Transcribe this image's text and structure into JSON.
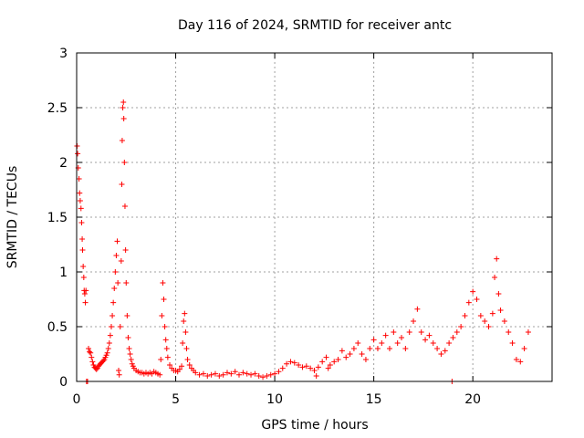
{
  "chart_data": {
    "type": "scatter",
    "title": "Day 116 of 2024, SRMTID for receiver antc",
    "xlabel": "GPS time / hours",
    "ylabel": "SRMTID / TECUs",
    "xlim": [
      0,
      24
    ],
    "ylim": [
      0,
      3
    ],
    "xticks": [
      0,
      5,
      10,
      15,
      20
    ],
    "yticks": [
      0,
      0.5,
      1,
      1.5,
      2,
      2.5,
      3
    ],
    "ytick_labels": [
      "0",
      "0.5",
      "1",
      "1.5",
      "2",
      "2.5",
      "3"
    ],
    "grid": true,
    "marker": "+",
    "color": "#ff0000",
    "series": [
      {
        "name": "SRMTID",
        "points": [
          [
            0.02,
            2.15
          ],
          [
            0.05,
            2.08
          ],
          [
            0.08,
            1.95
          ],
          [
            0.12,
            1.85
          ],
          [
            0.15,
            1.72
          ],
          [
            0.18,
            1.65
          ],
          [
            0.22,
            1.58
          ],
          [
            0.25,
            1.45
          ],
          [
            0.28,
            1.3
          ],
          [
            0.3,
            1.2
          ],
          [
            0.33,
            1.05
          ],
          [
            0.36,
            0.95
          ],
          [
            0.38,
            0.83
          ],
          [
            0.41,
            0.8
          ],
          [
            0.44,
            0.72
          ],
          [
            0.47,
            0.83
          ],
          [
            0.5,
            0.0
          ],
          [
            0.55,
            0.0
          ],
          [
            0.6,
            0.3
          ],
          [
            0.65,
            0.27
          ],
          [
            0.7,
            0.26
          ],
          [
            0.75,
            0.22
          ],
          [
            0.8,
            0.18
          ],
          [
            0.85,
            0.15
          ],
          [
            0.9,
            0.13
          ],
          [
            0.95,
            0.12
          ],
          [
            1.0,
            0.11
          ],
          [
            1.05,
            0.12
          ],
          [
            1.1,
            0.14
          ],
          [
            1.15,
            0.15
          ],
          [
            1.2,
            0.16
          ],
          [
            1.25,
            0.17
          ],
          [
            1.3,
            0.18
          ],
          [
            1.35,
            0.19
          ],
          [
            1.4,
            0.2
          ],
          [
            1.45,
            0.22
          ],
          [
            1.5,
            0.24
          ],
          [
            1.55,
            0.26
          ],
          [
            1.6,
            0.3
          ],
          [
            1.65,
            0.35
          ],
          [
            1.7,
            0.42
          ],
          [
            1.75,
            0.5
          ],
          [
            1.8,
            0.6
          ],
          [
            1.85,
            0.72
          ],
          [
            1.9,
            0.85
          ],
          [
            1.95,
            1.0
          ],
          [
            2.0,
            1.15
          ],
          [
            2.05,
            1.28
          ],
          [
            2.08,
            0.9
          ],
          [
            2.12,
            0.1
          ],
          [
            2.15,
            0.06
          ],
          [
            2.2,
            0.5
          ],
          [
            2.25,
            1.1
          ],
          [
            2.28,
            1.8
          ],
          [
            2.3,
            2.2
          ],
          [
            2.33,
            2.5
          ],
          [
            2.36,
            2.55
          ],
          [
            2.38,
            2.4
          ],
          [
            2.41,
            2.0
          ],
          [
            2.44,
            1.6
          ],
          [
            2.47,
            1.2
          ],
          [
            2.5,
            0.9
          ],
          [
            2.55,
            0.6
          ],
          [
            2.6,
            0.4
          ],
          [
            2.65,
            0.3
          ],
          [
            2.7,
            0.25
          ],
          [
            2.75,
            0.2
          ],
          [
            2.8,
            0.16
          ],
          [
            2.85,
            0.14
          ],
          [
            2.9,
            0.12
          ],
          [
            3.0,
            0.1
          ],
          [
            3.1,
            0.09
          ],
          [
            3.2,
            0.08
          ],
          [
            3.3,
            0.08
          ],
          [
            3.4,
            0.07
          ],
          [
            3.5,
            0.08
          ],
          [
            3.6,
            0.07
          ],
          [
            3.7,
            0.08
          ],
          [
            3.8,
            0.07
          ],
          [
            3.9,
            0.09
          ],
          [
            4.0,
            0.08
          ],
          [
            4.1,
            0.07
          ],
          [
            4.2,
            0.06
          ],
          [
            4.25,
            0.2
          ],
          [
            4.3,
            0.6
          ],
          [
            4.35,
            0.9
          ],
          [
            4.4,
            0.75
          ],
          [
            4.45,
            0.5
          ],
          [
            4.5,
            0.38
          ],
          [
            4.55,
            0.3
          ],
          [
            4.6,
            0.22
          ],
          [
            4.7,
            0.15
          ],
          [
            4.8,
            0.12
          ],
          [
            4.9,
            0.1
          ],
          [
            5.0,
            0.1
          ],
          [
            5.1,
            0.09
          ],
          [
            5.2,
            0.11
          ],
          [
            5.3,
            0.14
          ],
          [
            5.35,
            0.35
          ],
          [
            5.4,
            0.55
          ],
          [
            5.45,
            0.62
          ],
          [
            5.5,
            0.45
          ],
          [
            5.55,
            0.3
          ],
          [
            5.6,
            0.2
          ],
          [
            5.7,
            0.15
          ],
          [
            5.8,
            0.12
          ],
          [
            5.9,
            0.1
          ],
          [
            6.0,
            0.08
          ],
          [
            6.2,
            0.06
          ],
          [
            6.4,
            0.07
          ],
          [
            6.6,
            0.05
          ],
          [
            6.8,
            0.06
          ],
          [
            7.0,
            0.07
          ],
          [
            7.2,
            0.05
          ],
          [
            7.4,
            0.06
          ],
          [
            7.6,
            0.08
          ],
          [
            7.8,
            0.07
          ],
          [
            8.0,
            0.09
          ],
          [
            8.2,
            0.06
          ],
          [
            8.4,
            0.08
          ],
          [
            8.6,
            0.07
          ],
          [
            8.8,
            0.06
          ],
          [
            9.0,
            0.07
          ],
          [
            9.2,
            0.05
          ],
          [
            9.4,
            0.04
          ],
          [
            9.6,
            0.05
          ],
          [
            9.8,
            0.06
          ],
          [
            10.0,
            0.07
          ],
          [
            10.2,
            0.09
          ],
          [
            10.4,
            0.12
          ],
          [
            10.6,
            0.16
          ],
          [
            10.8,
            0.18
          ],
          [
            11.0,
            0.17
          ],
          [
            11.2,
            0.15
          ],
          [
            11.4,
            0.13
          ],
          [
            11.6,
            0.14
          ],
          [
            11.8,
            0.12
          ],
          [
            12.0,
            0.1
          ],
          [
            12.1,
            0.05
          ],
          [
            12.2,
            0.13
          ],
          [
            12.4,
            0.18
          ],
          [
            12.6,
            0.22
          ],
          [
            12.7,
            0.12
          ],
          [
            12.8,
            0.15
          ],
          [
            13.0,
            0.18
          ],
          [
            13.2,
            0.2
          ],
          [
            13.4,
            0.28
          ],
          [
            13.6,
            0.22
          ],
          [
            13.8,
            0.25
          ],
          [
            14.0,
            0.3
          ],
          [
            14.2,
            0.35
          ],
          [
            14.4,
            0.25
          ],
          [
            14.6,
            0.2
          ],
          [
            14.8,
            0.3
          ],
          [
            15.0,
            0.38
          ],
          [
            15.2,
            0.3
          ],
          [
            15.4,
            0.35
          ],
          [
            15.6,
            0.42
          ],
          [
            15.8,
            0.3
          ],
          [
            16.0,
            0.45
          ],
          [
            16.2,
            0.35
          ],
          [
            16.4,
            0.4
          ],
          [
            16.6,
            0.3
          ],
          [
            16.8,
            0.45
          ],
          [
            17.0,
            0.55
          ],
          [
            17.2,
            0.66
          ],
          [
            17.4,
            0.45
          ],
          [
            17.6,
            0.38
          ],
          [
            17.8,
            0.42
          ],
          [
            18.0,
            0.35
          ],
          [
            18.2,
            0.3
          ],
          [
            18.4,
            0.25
          ],
          [
            18.6,
            0.28
          ],
          [
            18.8,
            0.35
          ],
          [
            18.95,
            0.0
          ],
          [
            19.0,
            0.4
          ],
          [
            19.2,
            0.45
          ],
          [
            19.4,
            0.5
          ],
          [
            19.6,
            0.6
          ],
          [
            19.8,
            0.72
          ],
          [
            20.0,
            0.82
          ],
          [
            20.2,
            0.75
          ],
          [
            20.4,
            0.6
          ],
          [
            20.6,
            0.55
          ],
          [
            20.8,
            0.5
          ],
          [
            21.0,
            0.62
          ],
          [
            21.1,
            0.95
          ],
          [
            21.2,
            1.12
          ],
          [
            21.3,
            0.8
          ],
          [
            21.4,
            0.65
          ],
          [
            21.6,
            0.55
          ],
          [
            21.8,
            0.45
          ],
          [
            22.0,
            0.35
          ],
          [
            22.2,
            0.2
          ],
          [
            22.4,
            0.18
          ],
          [
            22.6,
            0.3
          ],
          [
            22.8,
            0.45
          ]
        ]
      }
    ]
  }
}
